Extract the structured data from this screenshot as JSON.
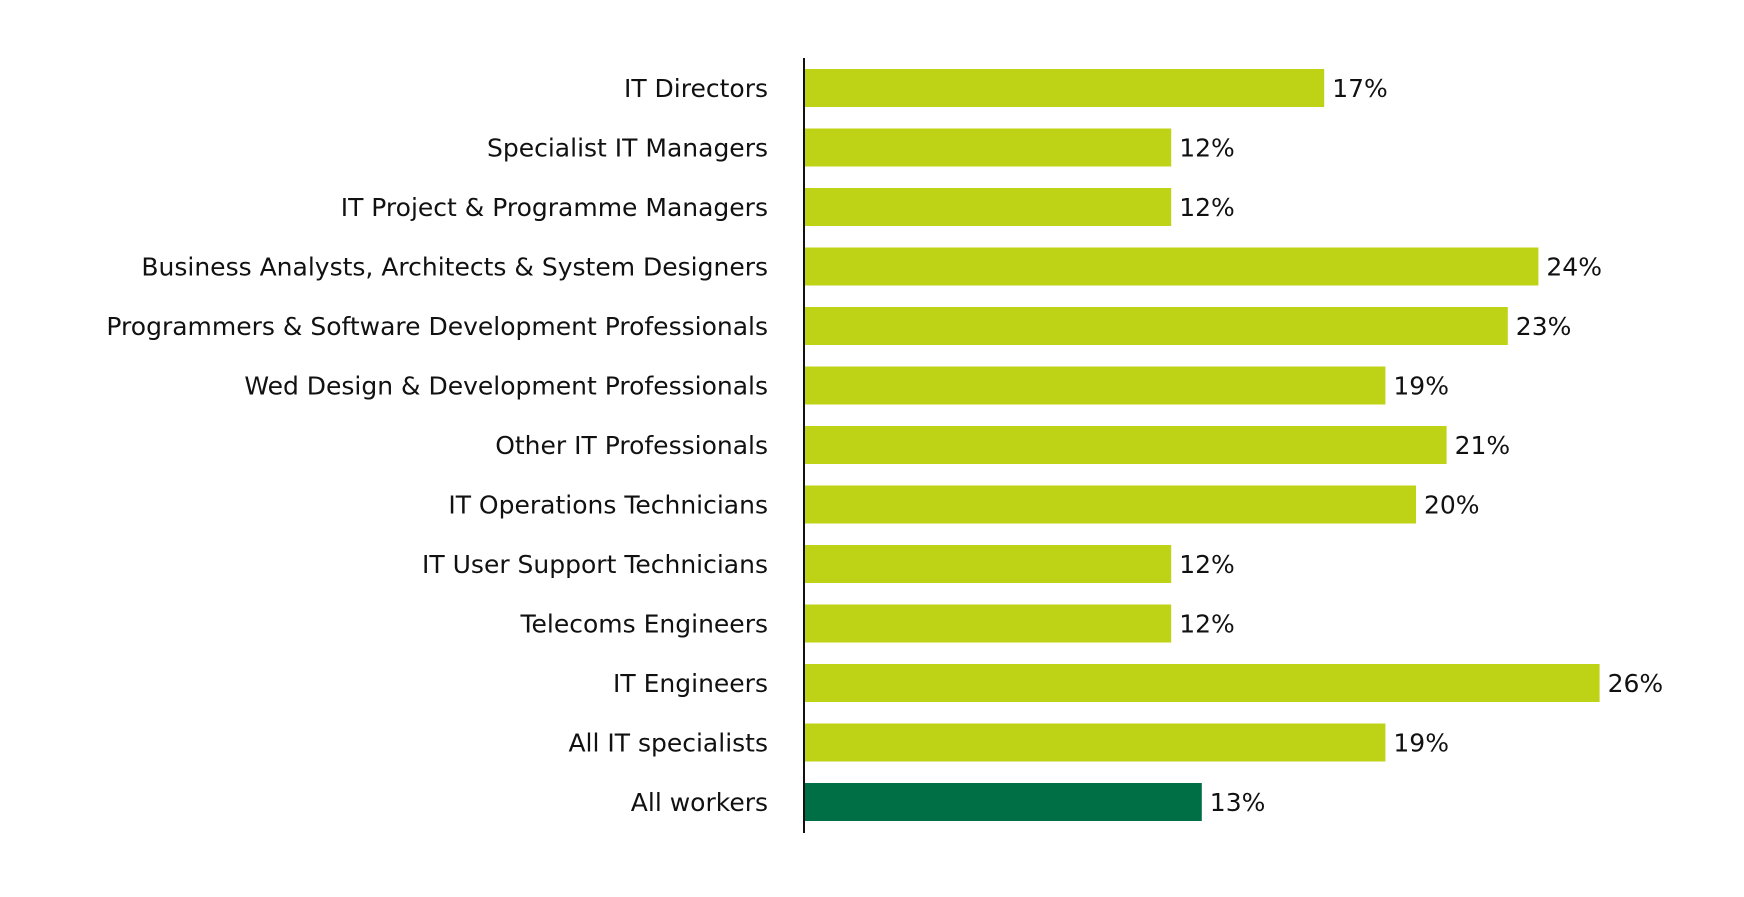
{
  "chart_data": {
    "type": "bar",
    "orientation": "horizontal",
    "categories": [
      "IT Directors",
      "Specialist IT Managers",
      "IT Project & Programme Managers",
      "Business Analysts, Architects & System Designers",
      "Programmers & Software Development Professionals",
      "Wed Design & Development Professionals",
      "Other IT Professionals",
      "IT Operations Technicians",
      "IT User Support Technicians",
      "Telecoms Engineers",
      "IT Engineers",
      "All IT specialists",
      "All workers"
    ],
    "values": [
      17,
      12,
      12,
      24,
      23,
      19,
      21,
      20,
      12,
      12,
      26,
      19,
      13
    ],
    "value_labels": [
      "17%",
      "12%",
      "12%",
      "24%",
      "23%",
      "19%",
      "21%",
      "20%",
      "12%",
      "12%",
      "26%",
      "19%",
      "13%"
    ],
    "bar_colors": [
      "#bfd316",
      "#bfd316",
      "#bfd316",
      "#bfd316",
      "#bfd316",
      "#bfd316",
      "#bfd316",
      "#bfd316",
      "#bfd316",
      "#bfd316",
      "#bfd316",
      "#bfd316",
      "#006f45"
    ],
    "xlim": [
      0,
      28
    ],
    "grid": false,
    "legend": "none",
    "title": "",
    "xlabel": "",
    "ylabel": ""
  }
}
